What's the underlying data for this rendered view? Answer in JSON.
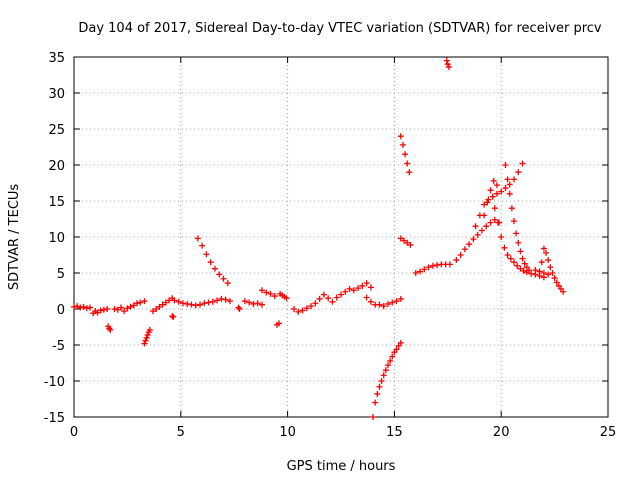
{
  "chart_data": {
    "type": "scatter",
    "title": "Day 104 of 2017, Sidereal Day-to-day VTEC variation (SDTVAR) for receiver prcv",
    "xlabel": "GPS time / hours",
    "ylabel": "SDTVAR / TECUs",
    "xlim": [
      0,
      25
    ],
    "ylim": [
      -15,
      35
    ],
    "x_ticks": [
      0,
      5,
      10,
      15,
      20,
      25
    ],
    "y_ticks": [
      -15,
      -10,
      -5,
      0,
      5,
      10,
      15,
      20,
      25,
      30,
      35
    ],
    "grid": true,
    "marker": "plus",
    "color": "#ff0000",
    "series": [
      {
        "segments": [
          {
            "x": [
              0.0,
              0.15,
              0.3,
              0.45,
              0.6,
              0.75
            ],
            "y": [
              0.3,
              0.4,
              0.2,
              0.3,
              0.1,
              0.2
            ]
          },
          {
            "x": [
              0.9,
              1.0,
              1.1,
              1.25,
              1.4,
              1.55
            ],
            "y": [
              -0.6,
              -0.3,
              -0.5,
              -0.2,
              -0.1,
              0.0
            ]
          },
          {
            "x": [
              1.6,
              1.65,
              1.7
            ],
            "y": [
              -2.4,
              -2.7,
              -2.9
            ]
          },
          {
            "x": [
              1.9,
              2.05,
              2.2,
              2.35,
              2.5,
              2.65,
              2.8,
              2.95,
              3.1,
              3.3
            ],
            "y": [
              0.0,
              -0.1,
              0.2,
              -0.3,
              0.1,
              0.3,
              0.5,
              0.8,
              0.9,
              1.1
            ]
          },
          {
            "x": [
              3.3,
              3.35,
              3.4,
              3.45,
              3.5,
              3.55
            ],
            "y": [
              -4.8,
              -4.4,
              -4.0,
              -3.6,
              -3.2,
              -2.9
            ]
          },
          {
            "x": [
              3.7,
              3.85,
              4.0,
              4.15,
              4.3,
              4.45,
              4.6
            ],
            "y": [
              -0.3,
              0.0,
              0.3,
              0.6,
              0.9,
              1.2,
              1.5
            ]
          },
          {
            "x": [
              4.6,
              4.65
            ],
            "y": [
              -1.0,
              -1.1
            ]
          },
          {
            "x": [
              4.7,
              4.9,
              5.1,
              5.3,
              5.5,
              5.7,
              5.9,
              6.1,
              6.3,
              6.5,
              6.7,
              6.9,
              7.1,
              7.3
            ],
            "y": [
              1.2,
              1.0,
              0.8,
              0.7,
              0.6,
              0.5,
              0.6,
              0.8,
              0.9,
              1.0,
              1.2,
              1.4,
              1.3,
              1.1
            ]
          },
          {
            "x": [
              5.8,
              6.0,
              6.2,
              6.4,
              6.6,
              6.8,
              7.0,
              7.2
            ],
            "y": [
              9.8,
              8.8,
              7.6,
              6.5,
              5.6,
              4.8,
              4.2,
              3.6
            ]
          },
          {
            "x": [
              7.7,
              7.75
            ],
            "y": [
              0.2,
              0.0
            ]
          },
          {
            "x": [
              8.0,
              8.2,
              8.4,
              8.6,
              8.8
            ],
            "y": [
              1.1,
              0.9,
              0.7,
              0.8,
              0.6
            ]
          },
          {
            "x": [
              8.8,
              9.0,
              9.2,
              9.4
            ],
            "y": [
              2.6,
              2.3,
              2.1,
              1.8
            ]
          },
          {
            "x": [
              9.5,
              9.6
            ],
            "y": [
              -2.2,
              -2.0
            ]
          },
          {
            "x": [
              9.65,
              9.75,
              9.85,
              9.95
            ],
            "y": [
              2.1,
              1.9,
              1.7,
              1.5
            ]
          },
          {
            "x": [
              10.3,
              10.5,
              10.7,
              10.9,
              11.1,
              11.3,
              11.5,
              11.7,
              11.9,
              12.1
            ],
            "y": [
              0.0,
              -0.4,
              -0.2,
              0.1,
              0.4,
              0.8,
              1.4,
              2.0,
              1.5,
              1.0
            ]
          },
          {
            "x": [
              12.3,
              12.5,
              12.7,
              12.9,
              13.1,
              13.3,
              13.5,
              13.7,
              13.9
            ],
            "y": [
              1.6,
              2.0,
              2.4,
              2.8,
              2.6,
              2.9,
              3.2,
              3.6,
              3.0
            ]
          },
          {
            "x": [
              13.7,
              13.9,
              14.1,
              14.3,
              14.5,
              14.7,
              14.9,
              15.1,
              15.3
            ],
            "y": [
              1.6,
              1.0,
              0.6,
              0.6,
              0.4,
              0.7,
              0.9,
              1.1,
              1.4
            ]
          },
          {
            "x": [
              14.0,
              14.1,
              14.2,
              14.3,
              14.4,
              14.5,
              14.6,
              14.7,
              14.8,
              14.9,
              15.0,
              15.1,
              15.2,
              15.3
            ],
            "y": [
              -15.0,
              -13.0,
              -11.8,
              -10.8,
              -10.0,
              -9.2,
              -8.5,
              -7.8,
              -7.2,
              -6.6,
              -6.0,
              -5.6,
              -5.1,
              -4.7
            ]
          },
          {
            "x": [
              15.3,
              15.4,
              15.5,
              15.6,
              15.7
            ],
            "y": [
              24.0,
              22.8,
              21.5,
              20.2,
              19.0
            ]
          },
          {
            "x": [
              15.3,
              15.45,
              15.6,
              15.75
            ],
            "y": [
              9.8,
              9.5,
              9.2,
              8.9
            ]
          },
          {
            "x": [
              16.0,
              16.2,
              16.4,
              16.6,
              16.8,
              17.0,
              17.2,
              17.4,
              17.6
            ],
            "y": [
              5.0,
              5.2,
              5.5,
              5.8,
              6.0,
              6.1,
              6.2,
              6.2,
              6.2
            ]
          },
          {
            "x": [
              17.45,
              17.5,
              17.55
            ],
            "y": [
              34.5,
              34.0,
              33.6
            ]
          },
          {
            "x": [
              17.9,
              18.1,
              18.3,
              18.5,
              18.7,
              18.9,
              19.1,
              19.3,
              19.5,
              19.7,
              19.9
            ],
            "y": [
              6.8,
              7.5,
              8.3,
              9.0,
              9.7,
              10.3,
              10.9,
              11.5,
              12.0,
              12.4,
              12.0
            ]
          },
          {
            "x": [
              18.8,
              19.0,
              19.2,
              19.4,
              19.6,
              19.8,
              20.0,
              20.2,
              20.4,
              20.6,
              20.8,
              21.0
            ],
            "y": [
              11.5,
              13.0,
              14.5,
              15.2,
              15.6,
              16.0,
              16.3,
              16.8,
              17.3,
              18.0,
              19.0,
              20.2
            ]
          },
          {
            "x": [
              19.2,
              19.35,
              19.5,
              19.65,
              19.8
            ],
            "y": [
              13.0,
              14.8,
              16.5,
              17.8,
              17.2
            ]
          },
          {
            "x": [
              19.7,
              19.85,
              20.0,
              20.15,
              20.3,
              20.45,
              20.6,
              20.75,
              20.9,
              21.05,
              21.2,
              21.4,
              21.6,
              21.8,
              22.0
            ],
            "y": [
              14.0,
              12.0,
              10.0,
              8.5,
              7.5,
              7.0,
              6.5,
              6.0,
              5.6,
              5.3,
              5.1,
              4.9,
              4.8,
              4.6,
              4.4
            ]
          },
          {
            "x": [
              20.2,
              20.3,
              20.4,
              20.5,
              20.6,
              20.7,
              20.8,
              20.9,
              21.0,
              21.1,
              21.2,
              21.3
            ],
            "y": [
              20.0,
              18.0,
              16.0,
              14.0,
              12.2,
              10.5,
              9.2,
              8.0,
              7.0,
              6.3,
              5.8,
              5.4
            ]
          },
          {
            "x": [
              21.9,
              22.0,
              22.1,
              22.2,
              22.3,
              22.4,
              22.5,
              22.6,
              22.7,
              22.8,
              22.9
            ],
            "y": [
              6.5,
              8.4,
              7.8,
              6.8,
              5.8,
              5.0,
              4.3,
              3.7,
              3.2,
              2.8,
              2.4
            ]
          },
          {
            "x": [
              21.6,
              21.8,
              22.0,
              22.2
            ],
            "y": [
              5.4,
              5.2,
              5.0,
              4.8
            ]
          }
        ]
      }
    ]
  }
}
